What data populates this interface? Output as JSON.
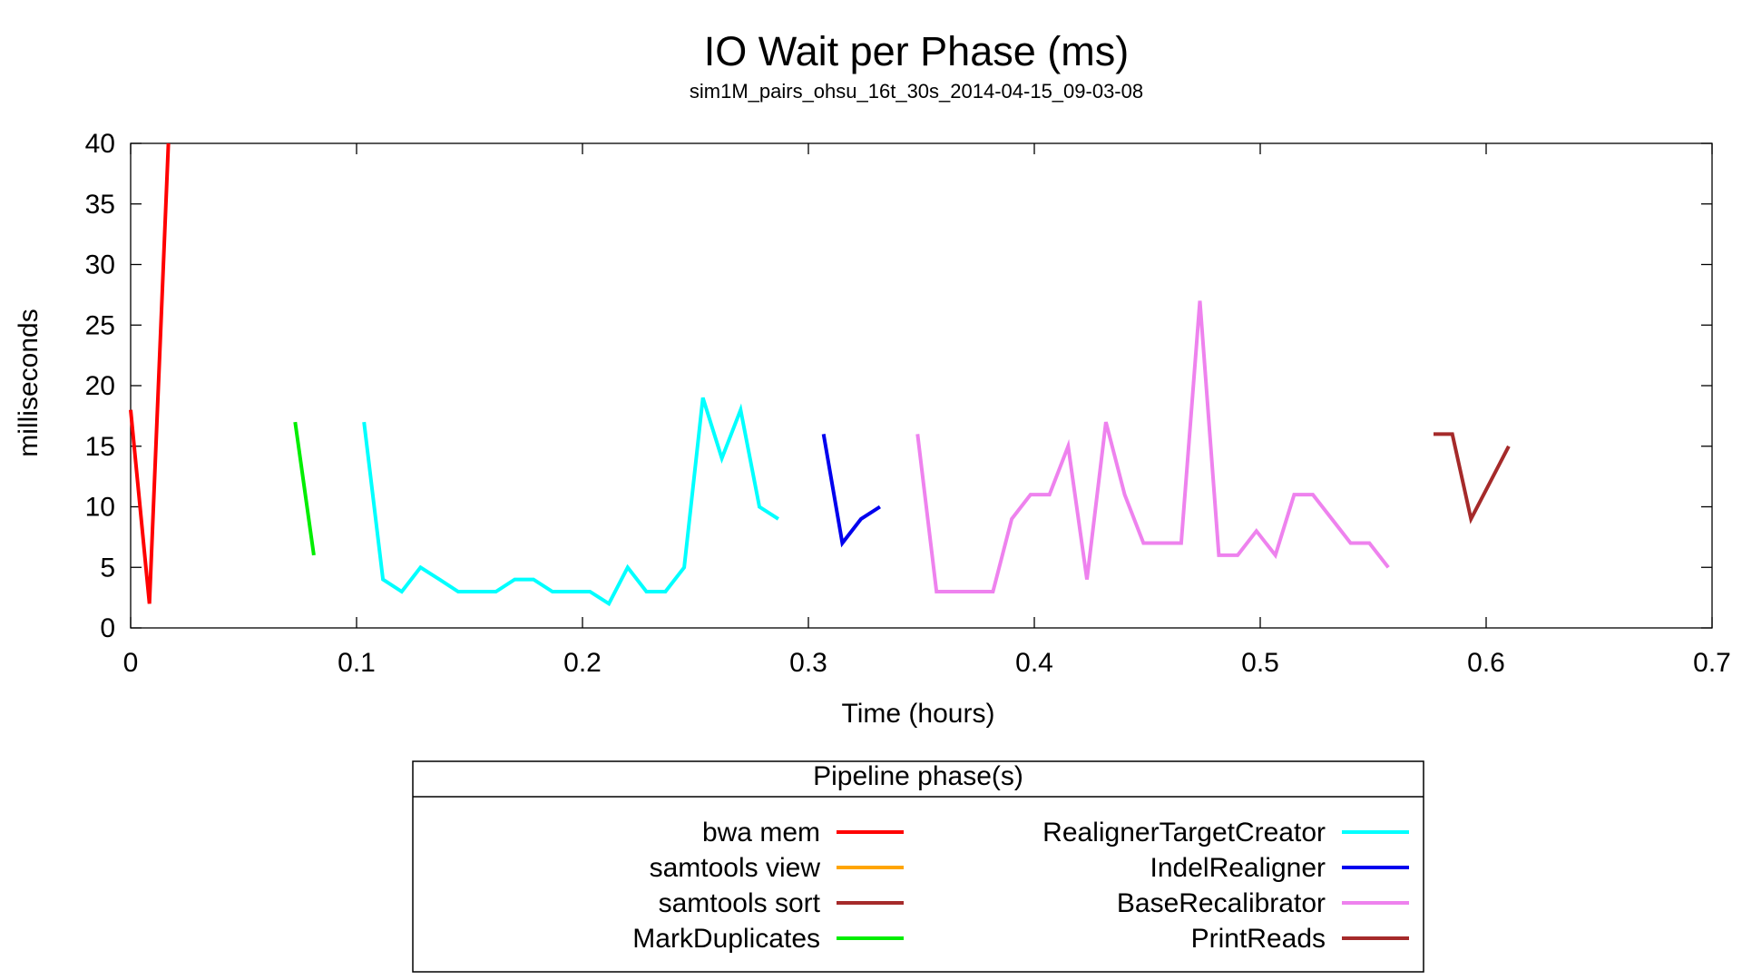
{
  "chart_data": {
    "type": "line",
    "title": "IO Wait per Phase (ms)",
    "subtitle": "sim1M_pairs_ohsu_16t_30s_2014-04-15_09-03-08",
    "xlabel": "Time (hours)",
    "ylabel": "milliseconds",
    "xlim": [
      0,
      0.7
    ],
    "ylim": [
      0,
      40
    ],
    "xticks": [
      "0",
      "0.1",
      "0.2",
      "0.3",
      "0.4",
      "0.5",
      "0.6",
      "0.7"
    ],
    "yticks": [
      "0",
      "5",
      "10",
      "15",
      "20",
      "25",
      "30",
      "35",
      "40"
    ],
    "grid": false,
    "legend": {
      "title": "Pipeline phase(s)",
      "placement": "bottom-center"
    },
    "series": [
      {
        "name": "bwa mem",
        "color": "#ff0000",
        "points": [
          [
            0.0,
            18
          ],
          [
            0.0083,
            2
          ],
          [
            0.0167,
            40
          ]
        ]
      },
      {
        "name": "samtools view",
        "color": "#ffa500",
        "points": []
      },
      {
        "name": "samtools sort",
        "color": "#a52a2a",
        "points": []
      },
      {
        "name": "MarkDuplicates",
        "color": "#00ee00",
        "points": [
          [
            0.0728,
            17
          ],
          [
            0.0811,
            6
          ]
        ]
      },
      {
        "name": "RealignerTargetCreator",
        "color": "#00ffff",
        "points": [
          [
            0.1033,
            17
          ],
          [
            0.1117,
            4
          ],
          [
            0.12,
            3
          ],
          [
            0.1283,
            5
          ],
          [
            0.1367,
            4
          ],
          [
            0.145,
            3
          ],
          [
            0.1533,
            3
          ],
          [
            0.1617,
            3
          ],
          [
            0.17,
            4
          ],
          [
            0.1783,
            4
          ],
          [
            0.1867,
            3
          ],
          [
            0.195,
            3
          ],
          [
            0.2033,
            3
          ],
          [
            0.2117,
            2
          ],
          [
            0.22,
            5
          ],
          [
            0.2283,
            3
          ],
          [
            0.2367,
            3
          ],
          [
            0.245,
            5
          ],
          [
            0.2533,
            19
          ],
          [
            0.2617,
            14
          ],
          [
            0.27,
            18
          ],
          [
            0.2783,
            10
          ],
          [
            0.2867,
            9
          ]
        ]
      },
      {
        "name": "IndelRealigner",
        "color": "#0000ee",
        "points": [
          [
            0.3067,
            16
          ],
          [
            0.315,
            7
          ],
          [
            0.3233,
            9
          ],
          [
            0.3317,
            10
          ]
        ]
      },
      {
        "name": "BaseRecalibrator",
        "color": "#ee82ee",
        "points": [
          [
            0.3483,
            16
          ],
          [
            0.3567,
            3
          ],
          [
            0.365,
            3
          ],
          [
            0.3733,
            3
          ],
          [
            0.3817,
            3
          ],
          [
            0.39,
            9
          ],
          [
            0.3983,
            11
          ],
          [
            0.4067,
            11
          ],
          [
            0.415,
            15
          ],
          [
            0.4233,
            4
          ],
          [
            0.4317,
            17
          ],
          [
            0.44,
            11
          ],
          [
            0.4483,
            7
          ],
          [
            0.4567,
            7
          ],
          [
            0.465,
            7
          ],
          [
            0.4733,
            27
          ],
          [
            0.4817,
            6
          ],
          [
            0.49,
            6
          ],
          [
            0.4983,
            8
          ],
          [
            0.5067,
            6
          ],
          [
            0.515,
            11
          ],
          [
            0.5233,
            11
          ],
          [
            0.5317,
            9
          ],
          [
            0.54,
            7
          ],
          [
            0.5483,
            7
          ],
          [
            0.5567,
            5
          ]
        ]
      },
      {
        "name": "PrintReads",
        "color": "#a52a2a",
        "points": [
          [
            0.5767,
            16
          ],
          [
            0.585,
            16
          ],
          [
            0.5933,
            9
          ],
          [
            0.61,
            15
          ]
        ]
      }
    ]
  }
}
